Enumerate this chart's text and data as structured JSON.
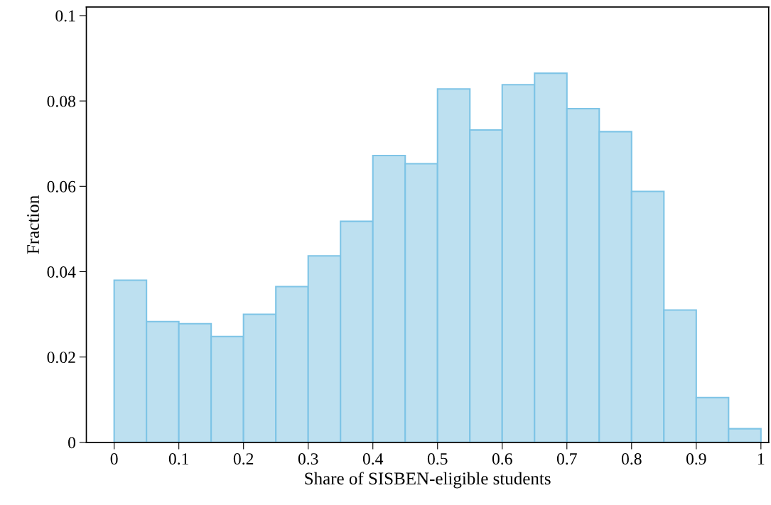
{
  "chart_data": {
    "type": "histogram",
    "xlabel": "Share of SISBEN-eligible students",
    "ylabel": "Fraction",
    "bins": [
      0,
      0.05,
      0.1,
      0.15,
      0.2,
      0.25,
      0.3,
      0.35,
      0.4,
      0.45,
      0.5,
      0.55,
      0.6,
      0.65,
      0.7,
      0.75,
      0.8,
      0.85,
      0.9,
      0.95,
      1
    ],
    "values": [
      0.038,
      0.0283,
      0.0278,
      0.0248,
      0.03,
      0.0365,
      0.0437,
      0.0518,
      0.0672,
      0.0653,
      0.0828,
      0.0732,
      0.0838,
      0.0865,
      0.0782,
      0.0728,
      0.0588,
      0.031,
      0.0105,
      0.0032
    ],
    "color": "#bde0f0",
    "xlim": [
      -0.043,
      1.012
    ],
    "ylim": [
      0,
      0.102
    ],
    "xticks": [
      0,
      0.1,
      0.2,
      0.3,
      0.4,
      0.5,
      0.6,
      0.7,
      0.8,
      0.9,
      1
    ],
    "yticks": [
      0,
      0.02,
      0.04,
      0.06,
      0.08,
      0.1
    ],
    "grid": false
  }
}
